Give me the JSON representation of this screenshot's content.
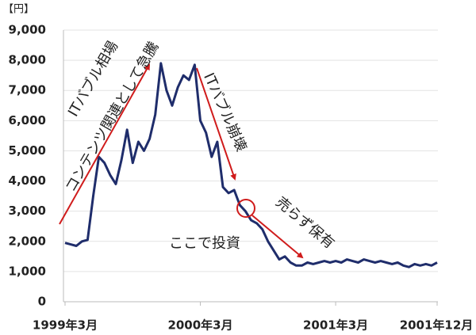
{
  "chart_data": {
    "type": "line",
    "unit_label": "【円】",
    "categories": [
      "1999年3月",
      null,
      null,
      null,
      null,
      null,
      null,
      null,
      null,
      null,
      null,
      null,
      null,
      null,
      null,
      null,
      null,
      null,
      null,
      null,
      null,
      null,
      null,
      null,
      "2000年3月",
      null,
      null,
      null,
      null,
      null,
      null,
      null,
      null,
      null,
      null,
      null,
      null,
      null,
      null,
      null,
      null,
      null,
      null,
      null,
      null,
      null,
      null,
      null,
      "2001年3月",
      null,
      null,
      null,
      null,
      null,
      null,
      null,
      null,
      null,
      null,
      null,
      null,
      null,
      null,
      null,
      null,
      null,
      "2001年12月"
    ],
    "series": [
      {
        "color": "#1f2d6b",
        "values": [
          1950,
          1900,
          1850,
          2000,
          2050,
          3500,
          4800,
          4600,
          4200,
          3900,
          4700,
          5700,
          4600,
          5300,
          5000,
          5400,
          6200,
          7900,
          7000,
          6500,
          7100,
          7500,
          7350,
          7850,
          6000,
          5600,
          4800,
          5300,
          3800,
          3600,
          3700,
          3200,
          3000,
          2700,
          2600,
          2400,
          2000,
          1700,
          1400,
          1500,
          1300,
          1200,
          1200,
          1300,
          1250,
          1300,
          1350,
          1300,
          1350,
          1300,
          1400,
          1350,
          1300,
          1400,
          1350,
          1300,
          1350,
          1300,
          1250,
          1300,
          1200,
          1150,
          1250,
          1200,
          1250,
          1200,
          1300
        ]
      }
    ],
    "ylim": [
      0,
      9000
    ],
    "yticks": [
      0,
      {
        "value": 1000,
        "label": "1,000"
      },
      {
        "value": 2000,
        "label": "2,000"
      },
      {
        "value": 3000,
        "label": "3,000"
      },
      {
        "value": 4000,
        "label": "4,000"
      },
      {
        "value": 5000,
        "label": "5,000"
      },
      {
        "value": 6000,
        "label": "6,000"
      },
      {
        "value": 7000,
        "label": "7,000"
      },
      {
        "value": 8000,
        "label": "8,000"
      },
      {
        "value": 9000,
        "label": "9,000"
      }
    ],
    "grid": true,
    "annotations": [
      {
        "text": "ITバブル相場"
      },
      {
        "text": "コンテンツ関連として急騰"
      },
      {
        "text": "ITバブル崩壊"
      },
      {
        "text": "売らず保有"
      },
      {
        "text": "ここで投資"
      }
    ],
    "annotation_color": "#d01c1c"
  }
}
